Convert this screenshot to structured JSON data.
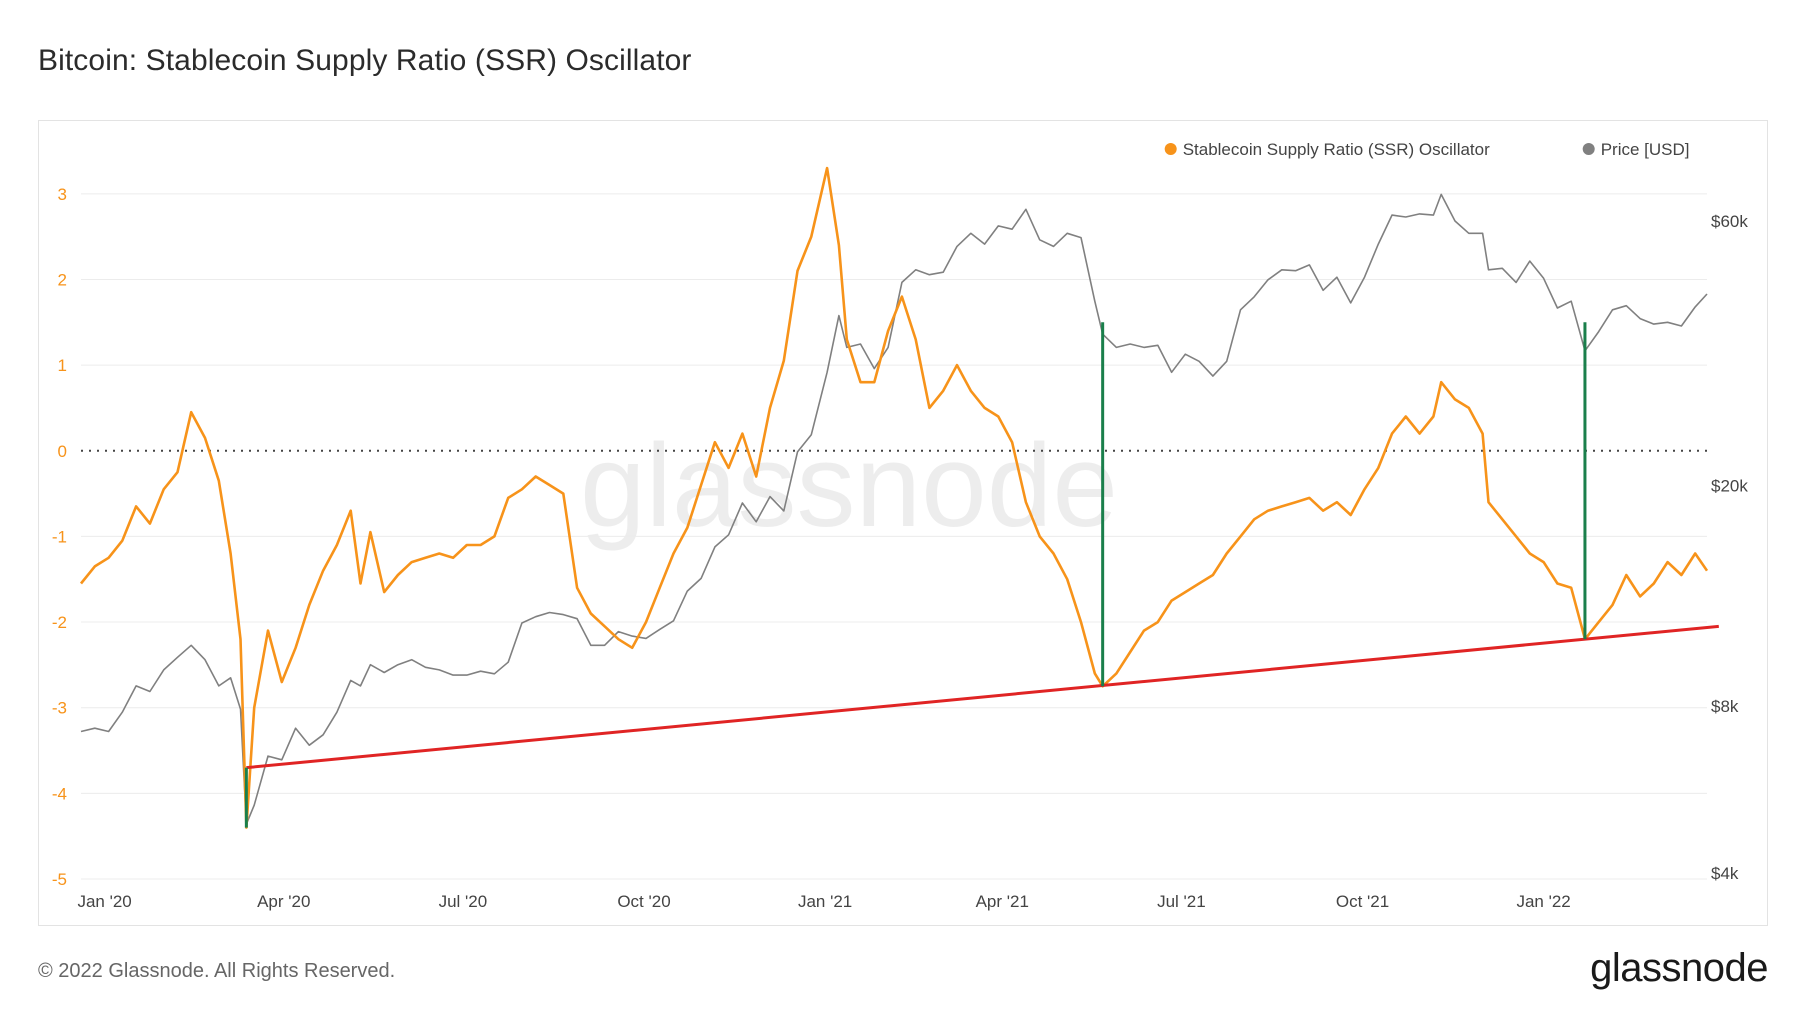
{
  "title": "Bitcoin: Stablecoin Supply Ratio (SSR) Oscillator",
  "footer": {
    "copyright": "© 2022 Glassnode. All Rights Reserved.",
    "brand": "glassnode"
  },
  "chart_data": {
    "type": "line",
    "watermark": "glassnode",
    "legend": {
      "placement": "top-right",
      "items": [
        {
          "label": "Stablecoin Supply Ratio (SSR) Oscillator",
          "color": "#f7931a"
        },
        {
          "label": "Price [USD]",
          "color": "#808080"
        }
      ]
    },
    "x_axis": {
      "ticks": [
        "Jan '20",
        "Apr '20",
        "Jul '20",
        "Oct '20",
        "Jan '21",
        "Apr '21",
        "Jul '21",
        "Oct '21",
        "Jan '22"
      ],
      "tick_dates": [
        "2020-01-01",
        "2020-04-01",
        "2020-07-01",
        "2020-10-01",
        "2021-01-01",
        "2021-04-01",
        "2021-07-01",
        "2021-10-01",
        "2022-01-01"
      ],
      "range": [
        "2019-12-20",
        "2022-03-25"
      ]
    },
    "y_left": {
      "ticks": [
        "3",
        "2",
        "1",
        "0",
        "-1",
        "-2",
        "-3",
        "-4",
        "-5"
      ],
      "values": [
        3,
        2,
        1,
        0,
        -1,
        -2,
        -3,
        -4,
        -5
      ],
      "range": [
        -5,
        3.5
      ],
      "color": "#f7931a"
    },
    "y_right": {
      "scale": "log",
      "ticks": [
        "$60k",
        "$20k",
        "$8k",
        "$4k"
      ],
      "values": [
        60000,
        20000,
        8000,
        4000
      ],
      "range": [
        4000,
        60000
      ]
    },
    "zero_line": {
      "value": 0,
      "style": "dotted"
    },
    "series": [
      {
        "name": "Stablecoin Supply Ratio (SSR) Oscillator",
        "color": "#f7931a",
        "axis": "left",
        "points": [
          [
            "2019-12-20",
            -1.55
          ],
          [
            "2019-12-27",
            -1.35
          ],
          [
            "2020-01-03",
            -1.25
          ],
          [
            "2020-01-10",
            -1.05
          ],
          [
            "2020-01-17",
            -0.65
          ],
          [
            "2020-01-24",
            -0.85
          ],
          [
            "2020-01-31",
            -0.45
          ],
          [
            "2020-02-07",
            -0.25
          ],
          [
            "2020-02-14",
            0.45
          ],
          [
            "2020-02-21",
            0.15
          ],
          [
            "2020-02-28",
            -0.35
          ],
          [
            "2020-03-05",
            -1.2
          ],
          [
            "2020-03-10",
            -2.2
          ],
          [
            "2020-03-13",
            -4.4
          ],
          [
            "2020-03-17",
            -3.0
          ],
          [
            "2020-03-24",
            -2.1
          ],
          [
            "2020-03-31",
            -2.7
          ],
          [
            "2020-04-07",
            -2.3
          ],
          [
            "2020-04-14",
            -1.8
          ],
          [
            "2020-04-21",
            -1.4
          ],
          [
            "2020-04-28",
            -1.1
          ],
          [
            "2020-05-05",
            -0.7
          ],
          [
            "2020-05-10",
            -1.55
          ],
          [
            "2020-05-15",
            -0.95
          ],
          [
            "2020-05-22",
            -1.65
          ],
          [
            "2020-05-29",
            -1.45
          ],
          [
            "2020-06-05",
            -1.3
          ],
          [
            "2020-06-12",
            -1.25
          ],
          [
            "2020-06-19",
            -1.2
          ],
          [
            "2020-06-26",
            -1.25
          ],
          [
            "2020-07-03",
            -1.1
          ],
          [
            "2020-07-10",
            -1.1
          ],
          [
            "2020-07-17",
            -1.0
          ],
          [
            "2020-07-24",
            -0.55
          ],
          [
            "2020-07-31",
            -0.45
          ],
          [
            "2020-08-07",
            -0.3
          ],
          [
            "2020-08-14",
            -0.4
          ],
          [
            "2020-08-21",
            -0.5
          ],
          [
            "2020-08-28",
            -1.6
          ],
          [
            "2020-09-04",
            -1.9
          ],
          [
            "2020-09-11",
            -2.05
          ],
          [
            "2020-09-18",
            -2.2
          ],
          [
            "2020-09-25",
            -2.3
          ],
          [
            "2020-10-02",
            -2.0
          ],
          [
            "2020-10-09",
            -1.6
          ],
          [
            "2020-10-16",
            -1.2
          ],
          [
            "2020-10-23",
            -0.9
          ],
          [
            "2020-10-30",
            -0.4
          ],
          [
            "2020-11-06",
            0.1
          ],
          [
            "2020-11-13",
            -0.2
          ],
          [
            "2020-11-20",
            0.2
          ],
          [
            "2020-11-27",
            -0.3
          ],
          [
            "2020-12-04",
            0.5
          ],
          [
            "2020-12-11",
            1.05
          ],
          [
            "2020-12-18",
            2.1
          ],
          [
            "2020-12-25",
            2.5
          ],
          [
            "2021-01-02",
            3.3
          ],
          [
            "2021-01-08",
            2.4
          ],
          [
            "2021-01-12",
            1.3
          ],
          [
            "2021-01-19",
            0.8
          ],
          [
            "2021-01-26",
            0.8
          ],
          [
            "2021-02-02",
            1.4
          ],
          [
            "2021-02-09",
            1.8
          ],
          [
            "2021-02-16",
            1.3
          ],
          [
            "2021-02-23",
            0.5
          ],
          [
            "2021-03-02",
            0.7
          ],
          [
            "2021-03-09",
            1.0
          ],
          [
            "2021-03-16",
            0.7
          ],
          [
            "2021-03-23",
            0.5
          ],
          [
            "2021-03-30",
            0.4
          ],
          [
            "2021-04-06",
            0.1
          ],
          [
            "2021-04-13",
            -0.6
          ],
          [
            "2021-04-20",
            -1.0
          ],
          [
            "2021-04-27",
            -1.2
          ],
          [
            "2021-05-04",
            -1.5
          ],
          [
            "2021-05-11",
            -2.0
          ],
          [
            "2021-05-18",
            -2.6
          ],
          [
            "2021-05-22",
            -2.75
          ],
          [
            "2021-05-29",
            -2.6
          ],
          [
            "2021-06-05",
            -2.35
          ],
          [
            "2021-06-12",
            -2.1
          ],
          [
            "2021-06-19",
            -2.0
          ],
          [
            "2021-06-26",
            -1.75
          ],
          [
            "2021-07-03",
            -1.65
          ],
          [
            "2021-07-10",
            -1.55
          ],
          [
            "2021-07-17",
            -1.45
          ],
          [
            "2021-07-24",
            -1.2
          ],
          [
            "2021-07-31",
            -1.0
          ],
          [
            "2021-08-07",
            -0.8
          ],
          [
            "2021-08-14",
            -0.7
          ],
          [
            "2021-08-21",
            -0.65
          ],
          [
            "2021-08-28",
            -0.6
          ],
          [
            "2021-09-04",
            -0.55
          ],
          [
            "2021-09-11",
            -0.7
          ],
          [
            "2021-09-18",
            -0.6
          ],
          [
            "2021-09-25",
            -0.75
          ],
          [
            "2021-10-02",
            -0.45
          ],
          [
            "2021-10-09",
            -0.2
          ],
          [
            "2021-10-16",
            0.2
          ],
          [
            "2021-10-23",
            0.4
          ],
          [
            "2021-10-30",
            0.2
          ],
          [
            "2021-11-06",
            0.4
          ],
          [
            "2021-11-10",
            0.8
          ],
          [
            "2021-11-17",
            0.6
          ],
          [
            "2021-11-24",
            0.5
          ],
          [
            "2021-12-01",
            0.2
          ],
          [
            "2021-12-04",
            -0.6
          ],
          [
            "2021-12-11",
            -0.8
          ],
          [
            "2021-12-18",
            -1.0
          ],
          [
            "2021-12-25",
            -1.2
          ],
          [
            "2022-01-01",
            -1.3
          ],
          [
            "2022-01-08",
            -1.55
          ],
          [
            "2022-01-15",
            -1.6
          ],
          [
            "2022-01-22",
            -2.2
          ],
          [
            "2022-01-29",
            -2.0
          ],
          [
            "2022-02-05",
            -1.8
          ],
          [
            "2022-02-12",
            -1.45
          ],
          [
            "2022-02-19",
            -1.7
          ],
          [
            "2022-02-26",
            -1.55
          ],
          [
            "2022-03-05",
            -1.3
          ],
          [
            "2022-03-12",
            -1.45
          ],
          [
            "2022-03-19",
            -1.2
          ],
          [
            "2022-03-25",
            -1.4
          ]
        ]
      },
      {
        "name": "Price [USD]",
        "color": "#808080",
        "axis": "right",
        "points": [
          [
            "2019-12-20",
            7200
          ],
          [
            "2019-12-27",
            7300
          ],
          [
            "2020-01-03",
            7200
          ],
          [
            "2020-01-10",
            7800
          ],
          [
            "2020-01-17",
            8700
          ],
          [
            "2020-01-24",
            8500
          ],
          [
            "2020-01-31",
            9300
          ],
          [
            "2020-02-07",
            9800
          ],
          [
            "2020-02-14",
            10300
          ],
          [
            "2020-02-21",
            9700
          ],
          [
            "2020-02-28",
            8700
          ],
          [
            "2020-03-05",
            9000
          ],
          [
            "2020-03-10",
            7900
          ],
          [
            "2020-03-13",
            4900
          ],
          [
            "2020-03-17",
            5300
          ],
          [
            "2020-03-24",
            6500
          ],
          [
            "2020-03-31",
            6400
          ],
          [
            "2020-04-07",
            7300
          ],
          [
            "2020-04-14",
            6800
          ],
          [
            "2020-04-21",
            7100
          ],
          [
            "2020-04-28",
            7800
          ],
          [
            "2020-05-05",
            8900
          ],
          [
            "2020-05-10",
            8700
          ],
          [
            "2020-05-15",
            9500
          ],
          [
            "2020-05-22",
            9200
          ],
          [
            "2020-05-29",
            9500
          ],
          [
            "2020-06-05",
            9700
          ],
          [
            "2020-06-12",
            9400
          ],
          [
            "2020-06-19",
            9300
          ],
          [
            "2020-06-26",
            9100
          ],
          [
            "2020-07-03",
            9100
          ],
          [
            "2020-07-10",
            9250
          ],
          [
            "2020-07-17",
            9150
          ],
          [
            "2020-07-24",
            9600
          ],
          [
            "2020-07-31",
            11300
          ],
          [
            "2020-08-07",
            11600
          ],
          [
            "2020-08-14",
            11800
          ],
          [
            "2020-08-21",
            11700
          ],
          [
            "2020-08-28",
            11500
          ],
          [
            "2020-09-04",
            10300
          ],
          [
            "2020-09-11",
            10300
          ],
          [
            "2020-09-18",
            10900
          ],
          [
            "2020-09-25",
            10700
          ],
          [
            "2020-10-02",
            10600
          ],
          [
            "2020-10-09",
            11000
          ],
          [
            "2020-10-16",
            11400
          ],
          [
            "2020-10-23",
            12900
          ],
          [
            "2020-10-30",
            13600
          ],
          [
            "2020-11-06",
            15500
          ],
          [
            "2020-11-13",
            16300
          ],
          [
            "2020-11-20",
            18600
          ],
          [
            "2020-11-27",
            17200
          ],
          [
            "2020-12-04",
            19100
          ],
          [
            "2020-12-11",
            18000
          ],
          [
            "2020-12-18",
            23000
          ],
          [
            "2020-12-25",
            24700
          ],
          [
            "2021-01-02",
            32000
          ],
          [
            "2021-01-08",
            40500
          ],
          [
            "2021-01-12",
            35500
          ],
          [
            "2021-01-19",
            36000
          ],
          [
            "2021-01-26",
            32500
          ],
          [
            "2021-02-02",
            35500
          ],
          [
            "2021-02-09",
            46500
          ],
          [
            "2021-02-16",
            49000
          ],
          [
            "2021-02-23",
            48000
          ],
          [
            "2021-03-02",
            48500
          ],
          [
            "2021-03-09",
            54000
          ],
          [
            "2021-03-16",
            57000
          ],
          [
            "2021-03-23",
            54500
          ],
          [
            "2021-03-30",
            58800
          ],
          [
            "2021-04-06",
            58000
          ],
          [
            "2021-04-13",
            63000
          ],
          [
            "2021-04-20",
            55500
          ],
          [
            "2021-04-27",
            54000
          ],
          [
            "2021-05-04",
            57000
          ],
          [
            "2021-05-11",
            56000
          ],
          [
            "2021-05-18",
            43000
          ],
          [
            "2021-05-22",
            37500
          ],
          [
            "2021-05-29",
            35500
          ],
          [
            "2021-06-05",
            36000
          ],
          [
            "2021-06-12",
            35500
          ],
          [
            "2021-06-19",
            35800
          ],
          [
            "2021-06-26",
            32000
          ],
          [
            "2021-07-03",
            34500
          ],
          [
            "2021-07-10",
            33500
          ],
          [
            "2021-07-17",
            31500
          ],
          [
            "2021-07-24",
            33500
          ],
          [
            "2021-07-31",
            41500
          ],
          [
            "2021-08-07",
            43800
          ],
          [
            "2021-08-14",
            47000
          ],
          [
            "2021-08-21",
            49000
          ],
          [
            "2021-08-28",
            48800
          ],
          [
            "2021-09-04",
            50000
          ],
          [
            "2021-09-11",
            45000
          ],
          [
            "2021-09-18",
            47500
          ],
          [
            "2021-09-25",
            42700
          ],
          [
            "2021-10-02",
            47500
          ],
          [
            "2021-10-09",
            54500
          ],
          [
            "2021-10-16",
            61500
          ],
          [
            "2021-10-23",
            61000
          ],
          [
            "2021-10-30",
            61800
          ],
          [
            "2021-11-06",
            61500
          ],
          [
            "2021-11-10",
            67000
          ],
          [
            "2021-11-17",
            60000
          ],
          [
            "2021-11-24",
            57000
          ],
          [
            "2021-12-01",
            57000
          ],
          [
            "2021-12-04",
            49000
          ],
          [
            "2021-12-11",
            49300
          ],
          [
            "2021-12-18",
            46500
          ],
          [
            "2021-12-25",
            50800
          ],
          [
            "2022-01-01",
            47300
          ],
          [
            "2022-01-08",
            41800
          ],
          [
            "2022-01-15",
            43000
          ],
          [
            "2022-01-22",
            35000
          ],
          [
            "2022-01-29",
            37900
          ],
          [
            "2022-02-05",
            41500
          ],
          [
            "2022-02-12",
            42200
          ],
          [
            "2022-02-19",
            40000
          ],
          [
            "2022-02-26",
            39100
          ],
          [
            "2022-03-05",
            39400
          ],
          [
            "2022-03-12",
            38800
          ],
          [
            "2022-03-19",
            42000
          ],
          [
            "2022-03-25",
            44300
          ]
        ]
      }
    ],
    "annotations": {
      "trend_line": {
        "color": "#e02424",
        "from": [
          "2020-03-13",
          -3.7
        ],
        "to": [
          "2022-03-31",
          -2.05
        ]
      },
      "drop_lines": {
        "color": "#1a7f4b",
        "items": [
          {
            "date": "2020-03-13",
            "from": -3.7,
            "to": -4.4
          },
          {
            "date": "2021-05-22",
            "from": -2.75,
            "to": 1.5
          },
          {
            "date": "2022-01-22",
            "from": -2.2,
            "to": 1.5
          }
        ]
      }
    }
  }
}
